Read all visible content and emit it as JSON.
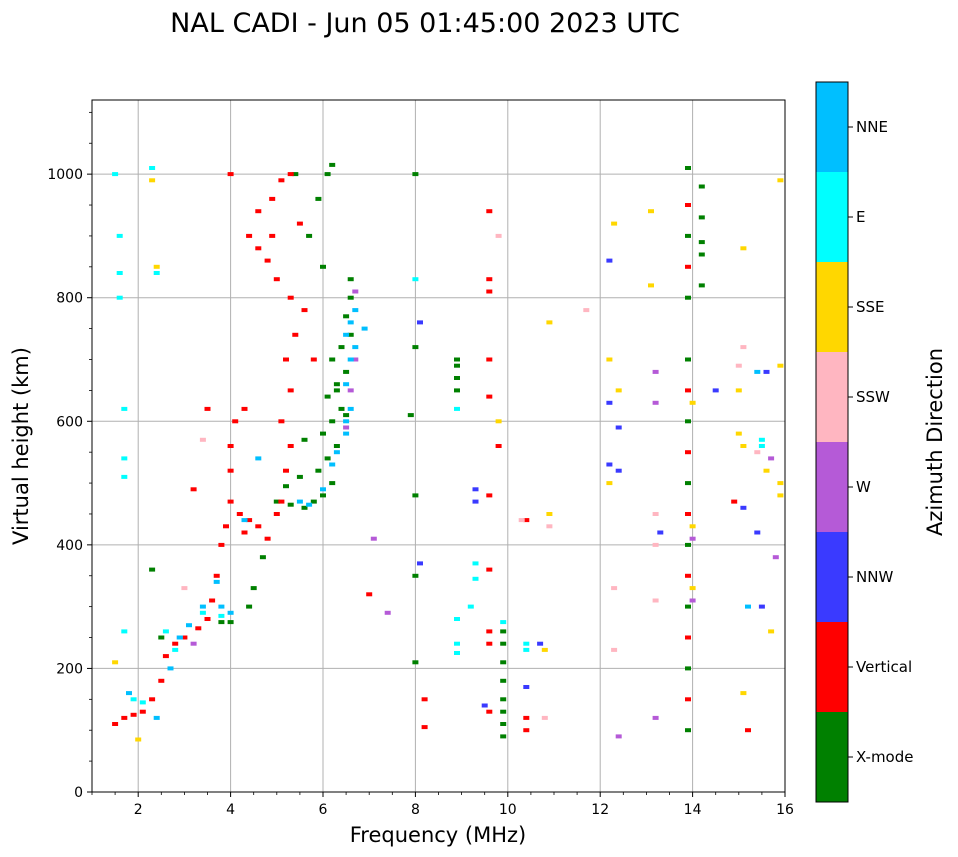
{
  "chart_data": {
    "type": "scatter",
    "title": "NAL CADI - Jun 05 01:45:00 2023 UTC",
    "xlabel": "Frequency (MHz)",
    "ylabel": "Virtual height (km)",
    "xlim": [
      1,
      16
    ],
    "ylim": [
      0,
      1120
    ],
    "xticks": [
      2,
      4,
      6,
      8,
      10,
      12,
      14,
      16
    ],
    "yticks": [
      0,
      200,
      400,
      600,
      800,
      1000
    ],
    "grid": true,
    "colorbar": {
      "label": "Azimuth Direction",
      "entries": [
        {
          "name": "X-mode",
          "color": "#008000"
        },
        {
          "name": "Vertical",
          "color": "#ff0000"
        },
        {
          "name": "NNW",
          "color": "#3a3aff"
        },
        {
          "name": "W",
          "color": "#b55ad7"
        },
        {
          "name": "SSW",
          "color": "#ffb6c1"
        },
        {
          "name": "SSE",
          "color": "#ffd700"
        },
        {
          "name": "E",
          "color": "#00ffff"
        },
        {
          "name": "NNE",
          "color": "#00bfff"
        }
      ]
    },
    "series": [
      {
        "name": "X-mode",
        "points": [
          [
            5.0,
            470
          ],
          [
            5.3,
            465
          ],
          [
            5.6,
            460
          ],
          [
            5.8,
            470
          ],
          [
            6.0,
            480
          ],
          [
            6.2,
            500
          ],
          [
            5.9,
            520
          ],
          [
            6.1,
            540
          ],
          [
            6.3,
            560
          ],
          [
            6.0,
            580
          ],
          [
            6.2,
            600
          ],
          [
            6.4,
            620
          ],
          [
            6.1,
            640
          ],
          [
            6.3,
            660
          ],
          [
            6.5,
            680
          ],
          [
            6.2,
            700
          ],
          [
            6.4,
            720
          ],
          [
            6.6,
            740
          ],
          [
            6.5,
            770
          ],
          [
            6.6,
            800
          ],
          [
            6.6,
            830
          ],
          [
            6.0,
            850
          ],
          [
            5.7,
            900
          ],
          [
            5.9,
            960
          ],
          [
            6.1,
            1000
          ],
          [
            6.2,
            1015
          ],
          [
            5.4,
            1000
          ],
          [
            5.5,
            510
          ],
          [
            5.2,
            495
          ],
          [
            4.7,
            380
          ],
          [
            4.5,
            330
          ],
          [
            4.4,
            300
          ],
          [
            3.8,
            275
          ],
          [
            4.0,
            275
          ],
          [
            2.5,
            250
          ],
          [
            2.3,
            360
          ],
          [
            8.9,
            650
          ],
          [
            8.9,
            670
          ],
          [
            8.9,
            690
          ],
          [
            8.9,
            700
          ],
          [
            8.0,
            1000
          ],
          [
            8.0,
            720
          ],
          [
            7.9,
            610
          ],
          [
            8.0,
            480
          ],
          [
            8.0,
            350
          ],
          [
            8.0,
            210
          ],
          [
            9.9,
            260
          ],
          [
            9.9,
            240
          ],
          [
            9.9,
            210
          ],
          [
            9.9,
            180
          ],
          [
            9.9,
            150
          ],
          [
            9.9,
            130
          ],
          [
            9.9,
            110
          ],
          [
            9.9,
            90
          ],
          [
            14.2,
            820
          ],
          [
            14.2,
            870
          ],
          [
            14.2,
            890
          ],
          [
            14.2,
            930
          ],
          [
            14.2,
            980
          ],
          [
            13.9,
            1010
          ],
          [
            13.9,
            900
          ],
          [
            13.9,
            800
          ],
          [
            13.9,
            700
          ],
          [
            13.9,
            600
          ],
          [
            13.9,
            500
          ],
          [
            13.9,
            400
          ],
          [
            13.9,
            300
          ],
          [
            13.9,
            200
          ],
          [
            13.9,
            100
          ],
          [
            6.5,
            610
          ],
          [
            5.6,
            570
          ],
          [
            6.3,
            650
          ]
        ]
      },
      {
        "name": "Vertical",
        "points": [
          [
            1.5,
            110
          ],
          [
            1.7,
            120
          ],
          [
            1.9,
            125
          ],
          [
            2.1,
            130
          ],
          [
            2.3,
            150
          ],
          [
            2.5,
            180
          ],
          [
            2.6,
            220
          ],
          [
            2.8,
            240
          ],
          [
            3.0,
            250
          ],
          [
            3.3,
            265
          ],
          [
            3.5,
            280
          ],
          [
            3.6,
            310
          ],
          [
            3.7,
            350
          ],
          [
            3.8,
            400
          ],
          [
            3.9,
            430
          ],
          [
            4.0,
            470
          ],
          [
            4.0,
            520
          ],
          [
            4.0,
            560
          ],
          [
            4.1,
            600
          ],
          [
            4.2,
            450
          ],
          [
            4.3,
            420
          ],
          [
            4.4,
            440
          ],
          [
            4.6,
            430
          ],
          [
            4.8,
            410
          ],
          [
            5.0,
            450
          ],
          [
            5.1,
            470
          ],
          [
            5.2,
            520
          ],
          [
            5.3,
            560
          ],
          [
            5.1,
            600
          ],
          [
            5.3,
            650
          ],
          [
            5.2,
            700
          ],
          [
            5.4,
            740
          ],
          [
            5.3,
            800
          ],
          [
            5.0,
            830
          ],
          [
            4.8,
            860
          ],
          [
            4.6,
            880
          ],
          [
            4.4,
            900
          ],
          [
            4.6,
            940
          ],
          [
            4.9,
            960
          ],
          [
            5.1,
            990
          ],
          [
            5.3,
            1000
          ],
          [
            4.3,
            620
          ],
          [
            4.0,
            1000
          ],
          [
            3.2,
            490
          ],
          [
            3.5,
            620
          ],
          [
            4.9,
            900
          ],
          [
            5.6,
            780
          ],
          [
            5.8,
            700
          ],
          [
            5.5,
            920
          ],
          [
            8.2,
            150
          ],
          [
            8.2,
            105
          ],
          [
            9.6,
            940
          ],
          [
            9.6,
            830
          ],
          [
            9.6,
            810
          ],
          [
            9.6,
            700
          ],
          [
            9.6,
            640
          ],
          [
            9.6,
            480
          ],
          [
            9.6,
            360
          ],
          [
            9.6,
            260
          ],
          [
            9.6,
            240
          ],
          [
            9.6,
            130
          ],
          [
            10.4,
            120
          ],
          [
            10.4,
            100
          ],
          [
            10.4,
            440
          ],
          [
            9.8,
            560
          ],
          [
            7.0,
            320
          ],
          [
            14.9,
            470
          ],
          [
            15.2,
            100
          ],
          [
            13.9,
            950
          ],
          [
            13.9,
            850
          ],
          [
            13.9,
            650
          ],
          [
            13.9,
            550
          ],
          [
            13.9,
            450
          ],
          [
            13.9,
            350
          ],
          [
            13.9,
            250
          ],
          [
            13.9,
            150
          ]
        ]
      },
      {
        "name": "NNW",
        "points": [
          [
            8.1,
            760
          ],
          [
            8.1,
            370
          ],
          [
            9.3,
            490
          ],
          [
            9.3,
            470
          ],
          [
            10.4,
            170
          ],
          [
            12.2,
            860
          ],
          [
            12.2,
            630
          ],
          [
            12.4,
            590
          ],
          [
            12.2,
            530
          ],
          [
            12.4,
            520
          ],
          [
            13.3,
            420
          ],
          [
            14.5,
            650
          ],
          [
            15.1,
            460
          ],
          [
            15.4,
            420
          ],
          [
            15.6,
            680
          ],
          [
            15.5,
            300
          ],
          [
            9.5,
            140
          ],
          [
            10.7,
            240
          ]
        ]
      },
      {
        "name": "W",
        "points": [
          [
            6.6,
            650
          ],
          [
            6.5,
            590
          ],
          [
            6.7,
            810
          ],
          [
            6.7,
            700
          ],
          [
            7.1,
            410
          ],
          [
            7.4,
            290
          ],
          [
            2.9,
            250
          ],
          [
            3.2,
            240
          ],
          [
            13.2,
            680
          ],
          [
            13.2,
            630
          ],
          [
            13.2,
            120
          ],
          [
            12.4,
            90
          ],
          [
            15.8,
            380
          ],
          [
            15.7,
            540
          ],
          [
            14.0,
            410
          ],
          [
            14.0,
            310
          ]
        ]
      },
      {
        "name": "SSW",
        "points": [
          [
            9.8,
            900
          ],
          [
            10.3,
            440
          ],
          [
            10.9,
            430
          ],
          [
            11.7,
            780
          ],
          [
            12.3,
            330
          ],
          [
            12.3,
            230
          ],
          [
            13.2,
            450
          ],
          [
            13.2,
            400
          ],
          [
            13.2,
            310
          ],
          [
            15.1,
            720
          ],
          [
            15.0,
            690
          ],
          [
            15.4,
            550
          ],
          [
            10.8,
            120
          ],
          [
            3.0,
            330
          ],
          [
            3.4,
            570
          ]
        ]
      },
      {
        "name": "SSE",
        "points": [
          [
            1.5,
            210
          ],
          [
            2.3,
            990
          ],
          [
            2.4,
            850
          ],
          [
            10.9,
            760
          ],
          [
            10.9,
            450
          ],
          [
            12.2,
            700
          ],
          [
            12.3,
            920
          ],
          [
            12.4,
            650
          ],
          [
            12.2,
            500
          ],
          [
            13.1,
            940
          ],
          [
            13.1,
            820
          ],
          [
            15.1,
            880
          ],
          [
            15.0,
            650
          ],
          [
            15.0,
            580
          ],
          [
            15.1,
            560
          ],
          [
            15.6,
            520
          ],
          [
            15.9,
            500
          ],
          [
            15.9,
            480
          ],
          [
            15.7,
            260
          ],
          [
            15.1,
            160
          ],
          [
            15.9,
            690
          ],
          [
            15.9,
            990
          ],
          [
            10.8,
            230
          ],
          [
            9.8,
            600
          ],
          [
            2.0,
            85
          ],
          [
            14.0,
            330
          ],
          [
            14.0,
            430
          ],
          [
            14.0,
            630
          ]
        ]
      },
      {
        "name": "E",
        "points": [
          [
            1.6,
            900
          ],
          [
            1.6,
            840
          ],
          [
            1.6,
            800
          ],
          [
            1.7,
            620
          ],
          [
            1.7,
            540
          ],
          [
            1.7,
            510
          ],
          [
            1.7,
            260
          ],
          [
            1.5,
            1000
          ],
          [
            2.3,
            1010
          ],
          [
            2.4,
            840
          ],
          [
            1.9,
            150
          ],
          [
            2.1,
            145
          ],
          [
            2.6,
            260
          ],
          [
            2.8,
            230
          ],
          [
            3.4,
            290
          ],
          [
            3.8,
            285
          ],
          [
            8.9,
            620
          ],
          [
            8.9,
            280
          ],
          [
            8.9,
            240
          ],
          [
            8.9,
            225
          ],
          [
            9.3,
            370
          ],
          [
            9.3,
            345
          ],
          [
            9.2,
            300
          ],
          [
            10.4,
            240
          ],
          [
            10.4,
            230
          ],
          [
            15.5,
            570
          ],
          [
            15.5,
            560
          ],
          [
            9.9,
            275
          ],
          [
            8.0,
            830
          ]
        ]
      },
      {
        "name": "NNE",
        "points": [
          [
            1.8,
            160
          ],
          [
            2.4,
            120
          ],
          [
            2.7,
            200
          ],
          [
            2.9,
            250
          ],
          [
            3.1,
            270
          ],
          [
            3.4,
            300
          ],
          [
            3.7,
            340
          ],
          [
            3.8,
            300
          ],
          [
            4.0,
            290
          ],
          [
            4.3,
            440
          ],
          [
            5.5,
            470
          ],
          [
            5.7,
            465
          ],
          [
            6.0,
            490
          ],
          [
            6.2,
            530
          ],
          [
            6.3,
            550
          ],
          [
            6.5,
            580
          ],
          [
            6.6,
            620
          ],
          [
            6.5,
            660
          ],
          [
            6.6,
            700
          ],
          [
            6.7,
            720
          ],
          [
            6.6,
            760
          ],
          [
            6.7,
            780
          ],
          [
            6.9,
            750
          ],
          [
            6.5,
            740
          ],
          [
            6.5,
            600
          ],
          [
            4.6,
            540
          ],
          [
            15.4,
            680
          ],
          [
            15.2,
            300
          ]
        ]
      }
    ]
  }
}
